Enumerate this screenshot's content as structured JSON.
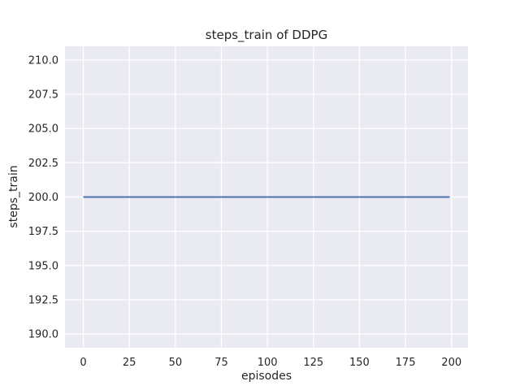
{
  "figure": {
    "background": "#ffffff"
  },
  "chart_data": {
    "type": "line",
    "title": "steps_train of DDPG",
    "xlabel": "episodes",
    "ylabel": "steps_train",
    "plot_background": "#eaeaf2",
    "grid_color": "#ffffff",
    "text_color": "#262626",
    "grid": true,
    "legend_position": "none",
    "xlim": [
      -9.95,
      208.95
    ],
    "ylim": [
      189,
      211
    ],
    "x_ticks": [
      0,
      25,
      50,
      75,
      100,
      125,
      150,
      175,
      200
    ],
    "x_tick_labels": [
      "0",
      "25",
      "50",
      "75",
      "100",
      "125",
      "150",
      "175",
      "200"
    ],
    "y_ticks": [
      190.0,
      192.5,
      195.0,
      197.5,
      200.0,
      202.5,
      205.0,
      207.5,
      210.0
    ],
    "y_tick_labels": [
      "190.0",
      "192.5",
      "195.0",
      "197.5",
      "200.0",
      "202.5",
      "205.0",
      "207.5",
      "210.0"
    ],
    "series": [
      {
        "name": "steps_train",
        "color": "#4c72b0",
        "line_width": 2.1,
        "x": [
          0,
          199
        ],
        "y": [
          200,
          200
        ]
      }
    ]
  }
}
